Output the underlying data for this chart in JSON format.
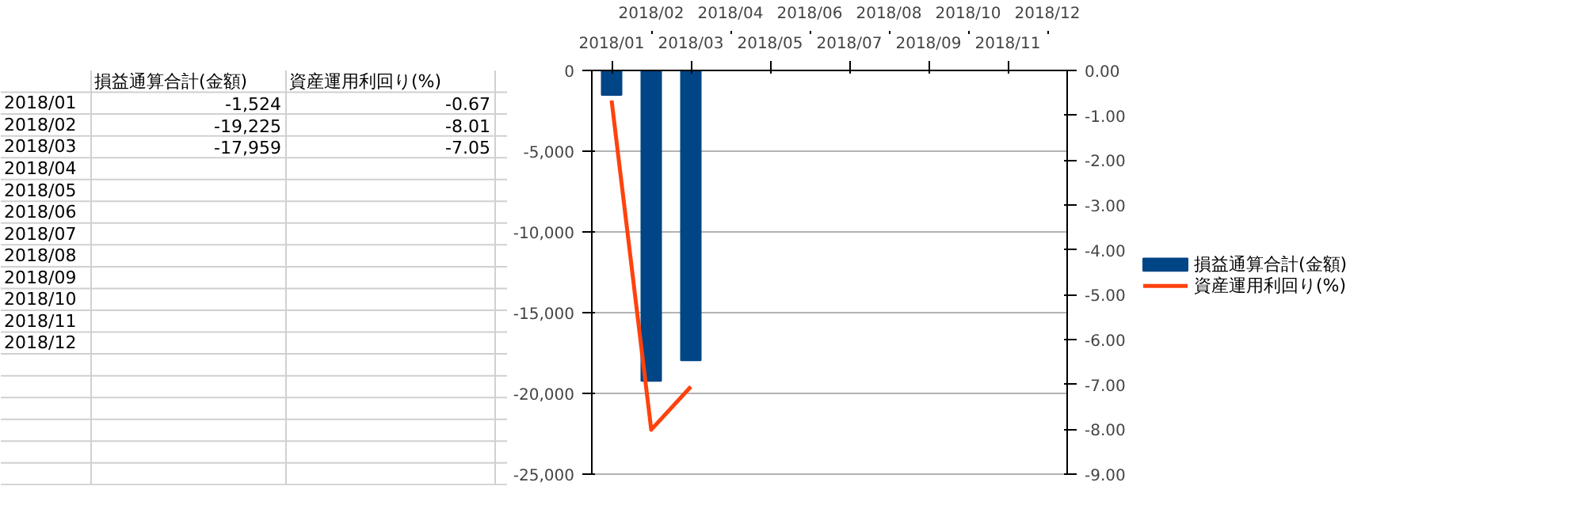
{
  "chart_data": [
    {
      "type": "other",
      "categories": [
        null,
        "損益通算合計(金額)",
        "資産運用利回り(%)"
      ],
      "y_categories": [
        "2018/01",
        "2018/02",
        "2018/03",
        "2018/04",
        "2018/05",
        "2018/06",
        "2018/07",
        "2018/08",
        "2018/09",
        "2018/10",
        "2018/11",
        "2018/12"
      ],
      "cell_labels": [
        [
          "-1,524",
          "-0.67"
        ],
        [
          "-19,225",
          "-8.01"
        ],
        [
          "-17,959",
          "-7.05"
        ],
        [
          null,
          null
        ],
        [
          null,
          null
        ],
        [
          null,
          null
        ],
        [
          null,
          null
        ],
        [
          null,
          null
        ],
        [
          null,
          null
        ],
        [
          null,
          null
        ],
        [
          null,
          null
        ],
        [
          null,
          null
        ]
      ]
    },
    {
      "type": "bar",
      "categories": [
        "2018/01",
        "2018/02",
        "2018/03",
        "2018/04",
        "2018/05",
        "2018/06",
        "2018/07",
        "2018/08",
        "2018/09",
        "2018/10",
        "2018/11",
        "2018/12"
      ],
      "series": [
        {
          "name": "損益通算合計(金額)",
          "color": "#004586",
          "values": [
            -1524,
            -19225,
            -17959,
            null,
            null,
            null,
            null,
            null,
            null,
            null,
            null,
            null
          ]
        },
        {
          "name": "資産運用利回り(%)",
          "type": "line",
          "axis": "y2",
          "color": "#ff420e",
          "values": [
            -0.67,
            -8.01,
            -7.05,
            null,
            null,
            null,
            null,
            null,
            null,
            null,
            null,
            null
          ]
        }
      ],
      "ylim": [
        -25000,
        0
      ],
      "yticks": [
        {
          "value": -25000,
          "label": "-25,000"
        },
        {
          "value": -20000,
          "label": "-20,000"
        },
        {
          "value": -15000,
          "label": "-15,000"
        },
        {
          "value": -10000,
          "label": "-10,000"
        },
        {
          "value": -5000,
          "label": "-5,000"
        },
        0
      ],
      "y2lim": [
        -9,
        0
      ],
      "y2ticks": [
        {
          "value": -9,
          "label": "-9.00"
        },
        {
          "value": -8,
          "label": "-8.00"
        },
        {
          "value": -7,
          "label": "-7.00"
        },
        {
          "value": -6,
          "label": "-6.00"
        },
        {
          "value": -5,
          "label": "-5.00"
        },
        {
          "value": -4,
          "label": "-4.00"
        },
        {
          "value": -3,
          "label": "-3.00"
        },
        {
          "value": -2,
          "label": "-2.00"
        },
        {
          "value": -1,
          "label": "-1.00"
        },
        {
          "value": 0,
          "label": "0.00"
        }
      ],
      "grid": "y",
      "legend": "right"
    }
  ]
}
